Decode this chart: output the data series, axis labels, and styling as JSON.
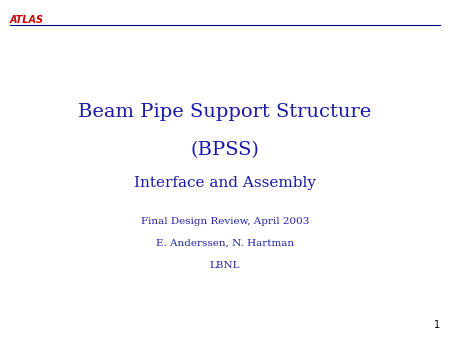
{
  "background_color": "#ffffff",
  "atlas_label": "ATLAS",
  "atlas_color": "#cc0000",
  "atlas_fontsize": 7,
  "line_color": "#000080",
  "line_width": 0.8,
  "title_line1": "Beam Pipe Support Structure",
  "title_line2": "(BPSS)",
  "title_line3": "Interface and Assembly",
  "title_color": "#1a1aaa",
  "title_fontsize1": 14,
  "title_fontsize3": 11,
  "subtitle_line1": "Final Design Review, April 2003",
  "subtitle_line2": "E. Anderssen, N. Hartman",
  "subtitle_line3": "LBNL",
  "subtitle_color": "#2222aa",
  "subtitle_fontsize": 7.5,
  "page_number": "1",
  "page_number_color": "#000000",
  "page_number_fontsize": 7
}
